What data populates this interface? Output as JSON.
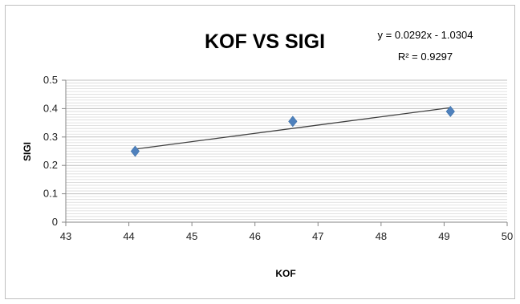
{
  "chart_data": {
    "type": "scatter",
    "title": "KOF VS SIGI",
    "xlabel": "KOF",
    "ylabel": "SIGI",
    "xlim": [
      43,
      50
    ],
    "ylim": [
      0,
      0.5
    ],
    "x_ticks": [
      "43",
      "44",
      "45",
      "46",
      "47",
      "48",
      "49",
      "50"
    ],
    "y_ticks": [
      "0",
      "0.1",
      "0.2",
      "0.3",
      "0.4",
      "0.5"
    ],
    "grid": "horizontal",
    "series": [
      {
        "points": [
          {
            "x": 44.1,
            "y": 0.25
          },
          {
            "x": 46.6,
            "y": 0.355
          },
          {
            "x": 49.1,
            "y": 0.39
          }
        ],
        "marker": "diamond",
        "color": "#4f81bd"
      }
    ],
    "trendline": {
      "type": "linear",
      "slope": 0.0292,
      "intercept": -1.0304,
      "x_range": [
        44.1,
        49.1
      ],
      "color": "#404040",
      "equation": "y = 0.0292x - 1.0304",
      "r_squared": "R² = 0.9297"
    }
  }
}
